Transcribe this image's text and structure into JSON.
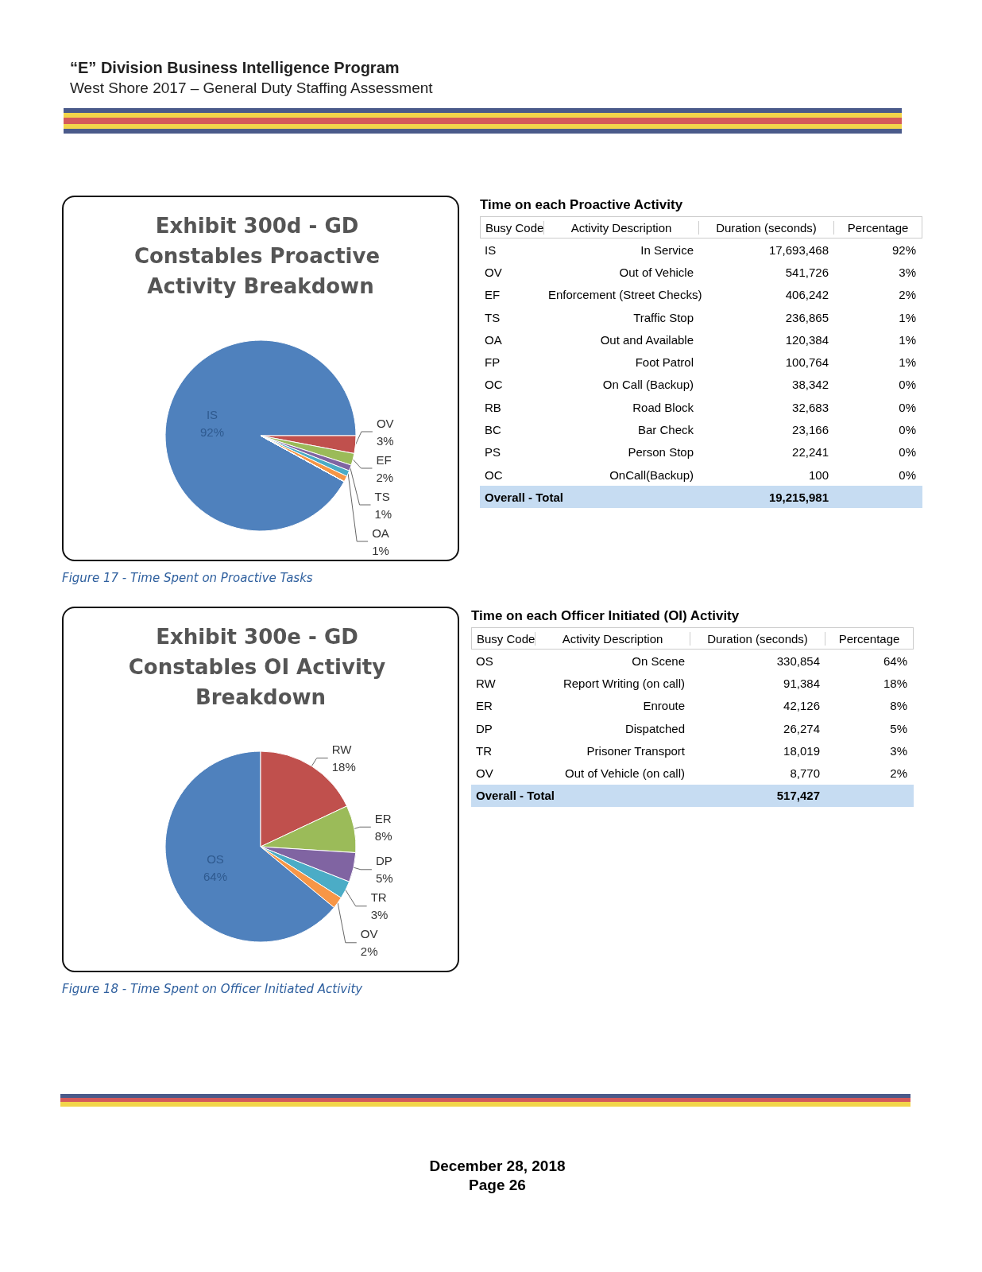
{
  "chart_data": [
    {
      "type": "other",
      "annotations": [
        "“E” Division Business Intelligence Program",
        "West Shore 2017 – General Duty Staffing Assessment",
        "December 28, 2018",
        "Page 26"
      ]
    },
    {
      "type": "pie",
      "title": "Exhibit 300d - GD Constables Proactive Activity Breakdown",
      "categories": [
        "IS",
        "OV",
        "EF",
        "TS",
        "OA",
        null,
        null,
        null,
        null,
        null,
        null
      ],
      "values": [
        92,
        3,
        2,
        1,
        1,
        1,
        0,
        0,
        0,
        0,
        0
      ],
      "colors": [
        "#4f81bd",
        "#c0504d",
        "#9bbb59",
        "#8064a2",
        "#4bacc6",
        "#f79646",
        "#2c4d75",
        "#772c2a",
        "#5f7530",
        "#4d3b62",
        "#276a7c"
      ],
      "value_labels": [
        "92%",
        "3%",
        "2%",
        "1%",
        "1%",
        null,
        null,
        null,
        null,
        null,
        null
      ],
      "annotations": [
        "Figure 17 - Time Spent on Proactive Tasks"
      ]
    },
    {
      "type": "other",
      "title": "Time on each Proactive Activity",
      "annotations": [
        "Busy Code",
        "Activity Description",
        "Duration (seconds)",
        "Percentage",
        "IS",
        "In Service",
        "17,693,468",
        "92%",
        "OV",
        "Out of Vehicle",
        "541,726",
        "3%",
        "EF",
        "Enforcement (Street Checks)",
        "406,242",
        "2%",
        "TS",
        "Traffic Stop",
        "236,865",
        "1%",
        "OA",
        "Out and Available",
        "120,384",
        "1%",
        "FP",
        "Foot Patrol",
        "100,764",
        "1%",
        "OC",
        "On Call (Backup)",
        "38,342",
        "0%",
        "RB",
        "Road Block",
        "32,683",
        "0%",
        "BC",
        "Bar Check",
        "23,166",
        "0%",
        "PS",
        "Person Stop",
        "22,241",
        "0%",
        "OC",
        "OnCall(Backup)",
        "100",
        "0%",
        "Overall - Total",
        "19,215,981"
      ]
    },
    {
      "type": "pie",
      "title": "Exhibit 300e - GD Constables OI Activity Breakdown",
      "categories": [
        "OS",
        "RW",
        "ER",
        "DP",
        "TR",
        "OV"
      ],
      "values": [
        64,
        18,
        8,
        5,
        3,
        2
      ],
      "colors": [
        "#4f81bd",
        "#c0504d",
        "#9bbb59",
        "#8064a2",
        "#4bacc6",
        "#f79646"
      ],
      "value_labels": [
        "64%",
        "18%",
        "8%",
        "5%",
        "3%",
        "2%"
      ],
      "annotations": [
        "Figure 18 - Time Spent on Officer Initiated Activity"
      ]
    },
    {
      "type": "other",
      "title": "Time on each Officer Initiated (OI) Activity",
      "annotations": [
        "Busy Code",
        "Activity Description",
        "Duration (seconds)",
        "Percentage",
        "OS",
        "On Scene",
        "330,854",
        "64%",
        "RW",
        "Report Writing (on call)",
        "91,384",
        "18%",
        "ER",
        "Enroute",
        "42,126",
        "8%",
        "DP",
        "Dispatched",
        "26,274",
        "5%",
        "TR",
        "Prisoner Transport",
        "18,019",
        "3%",
        "OV",
        "Out of Vehicle (on call)",
        "8,770",
        "2%",
        "Overall - Total",
        "517,427"
      ]
    }
  ]
}
